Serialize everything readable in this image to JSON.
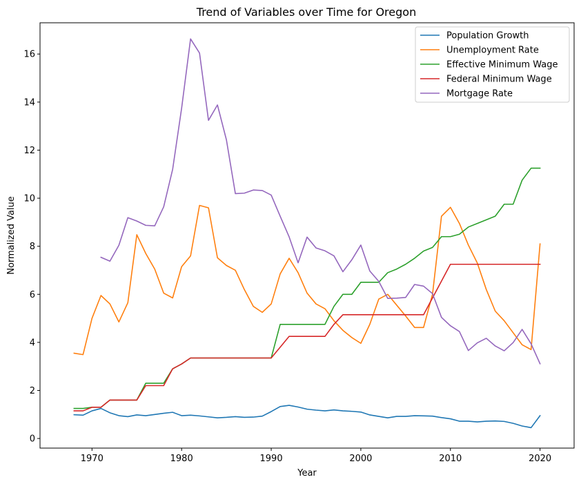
{
  "chart_data": {
    "type": "line",
    "title": "Trend of Variables over Time for Oregon",
    "xlabel": "Year",
    "ylabel": "Normalized Value",
    "xlim": [
      1964.2,
      2023.8
    ],
    "ylim": [
      -0.4,
      17.3
    ],
    "xticks": [
      1970,
      1980,
      1990,
      2000,
      2010,
      2020
    ],
    "yticks": [
      0,
      2,
      4,
      6,
      8,
      10,
      12,
      14,
      16
    ],
    "grid": false,
    "legend_position": "top-right",
    "series": [
      {
        "name": "Population Growth",
        "color": "#1f77b4",
        "x": [
          1968,
          1969,
          1970,
          1971,
          1972,
          1973,
          1974,
          1975,
          1976,
          1977,
          1978,
          1979,
          1980,
          1981,
          1982,
          1983,
          1984,
          1985,
          1986,
          1987,
          1988,
          1989,
          1990,
          1991,
          1992,
          1993,
          1994,
          1995,
          1996,
          1997,
          1998,
          1999,
          2000,
          2001,
          2002,
          2003,
          2004,
          2005,
          2006,
          2007,
          2008,
          2009,
          2010,
          2011,
          2012,
          2013,
          2014,
          2015,
          2016,
          2017,
          2018,
          2019,
          2020
        ],
        "values": [
          0.99,
          0.97,
          1.15,
          1.25,
          1.07,
          0.95,
          0.91,
          0.98,
          0.95,
          1.0,
          1.05,
          1.09,
          0.95,
          0.97,
          0.94,
          0.9,
          0.86,
          0.88,
          0.91,
          0.88,
          0.89,
          0.93,
          1.12,
          1.33,
          1.38,
          1.31,
          1.22,
          1.18,
          1.15,
          1.19,
          1.15,
          1.13,
          1.1,
          0.98,
          0.92,
          0.86,
          0.92,
          0.92,
          0.95,
          0.94,
          0.93,
          0.87,
          0.82,
          0.72,
          0.72,
          0.69,
          0.72,
          0.73,
          0.71,
          0.63,
          0.52,
          0.45,
          0.95
        ]
      },
      {
        "name": "Unemployment Rate",
        "color": "#ff7f0e",
        "x": [
          1968,
          1969,
          1970,
          1971,
          1972,
          1973,
          1974,
          1975,
          1976,
          1977,
          1978,
          1979,
          1980,
          1981,
          1982,
          1983,
          1984,
          1985,
          1986,
          1987,
          1988,
          1989,
          1990,
          1991,
          1992,
          1993,
          1994,
          1995,
          1996,
          1997,
          1998,
          1999,
          2000,
          2001,
          2002,
          2003,
          2004,
          2005,
          2006,
          2007,
          2008,
          2009,
          2010,
          2011,
          2012,
          2013,
          2014,
          2015,
          2016,
          2017,
          2018,
          2019,
          2020
        ],
        "values": [
          3.55,
          3.49,
          5.0,
          5.95,
          5.6,
          4.85,
          5.65,
          8.48,
          7.7,
          7.05,
          6.05,
          5.85,
          7.15,
          7.6,
          9.7,
          9.6,
          7.52,
          7.2,
          7.0,
          6.2,
          5.5,
          5.25,
          5.6,
          6.85,
          7.5,
          6.9,
          6.05,
          5.6,
          5.4,
          4.9,
          4.5,
          4.2,
          3.96,
          4.75,
          5.8,
          6.0,
          5.55,
          5.1,
          4.62,
          4.62,
          6.0,
          9.25,
          9.62,
          8.95,
          8.05,
          7.3,
          6.2,
          5.3,
          4.9,
          4.4,
          3.9,
          3.7,
          8.1
        ]
      },
      {
        "name": "Effective Minimum Wage",
        "color": "#2ca02c",
        "x": [
          1968,
          1969,
          1970,
          1971,
          1972,
          1973,
          1974,
          1975,
          1976,
          1977,
          1978,
          1979,
          1980,
          1981,
          1982,
          1983,
          1984,
          1985,
          1986,
          1987,
          1988,
          1989,
          1990,
          1991,
          1992,
          1993,
          1994,
          1995,
          1996,
          1997,
          1998,
          1999,
          2000,
          2001,
          2002,
          2003,
          2004,
          2005,
          2006,
          2007,
          2008,
          2009,
          2010,
          2011,
          2012,
          2013,
          2014,
          2015,
          2016,
          2017,
          2018,
          2019,
          2020
        ],
        "values": [
          1.25,
          1.25,
          1.3,
          1.3,
          1.6,
          1.6,
          1.6,
          1.6,
          2.3,
          2.3,
          2.3,
          2.9,
          3.1,
          3.35,
          3.35,
          3.35,
          3.35,
          3.35,
          3.35,
          3.35,
          3.35,
          3.35,
          3.35,
          4.75,
          4.75,
          4.75,
          4.75,
          4.75,
          4.75,
          5.5,
          6.0,
          6.0,
          6.5,
          6.5,
          6.5,
          6.9,
          7.05,
          7.25,
          7.5,
          7.8,
          7.95,
          8.4,
          8.4,
          8.5,
          8.8,
          8.95,
          9.1,
          9.25,
          9.75,
          9.75,
          10.75,
          11.25,
          11.25
        ]
      },
      {
        "name": "Federal Minimum Wage",
        "color": "#d62728",
        "x": [
          1968,
          1969,
          1970,
          1971,
          1972,
          1973,
          1974,
          1975,
          1976,
          1977,
          1978,
          1979,
          1980,
          1981,
          1982,
          1983,
          1984,
          1985,
          1986,
          1987,
          1988,
          1989,
          1990,
          1991,
          1992,
          1993,
          1994,
          1995,
          1996,
          1997,
          1998,
          1999,
          2000,
          2001,
          2002,
          2003,
          2004,
          2005,
          2006,
          2007,
          2008,
          2009,
          2010,
          2011,
          2012,
          2013,
          2014,
          2015,
          2016,
          2017,
          2018,
          2019,
          2020
        ],
        "values": [
          1.15,
          1.15,
          1.3,
          1.3,
          1.6,
          1.6,
          1.6,
          1.6,
          2.2,
          2.2,
          2.2,
          2.9,
          3.1,
          3.35,
          3.35,
          3.35,
          3.35,
          3.35,
          3.35,
          3.35,
          3.35,
          3.35,
          3.35,
          3.8,
          4.25,
          4.25,
          4.25,
          4.25,
          4.25,
          4.75,
          5.15,
          5.15,
          5.15,
          5.15,
          5.15,
          5.15,
          5.15,
          5.15,
          5.15,
          5.15,
          5.85,
          6.55,
          7.25,
          7.25,
          7.25,
          7.25,
          7.25,
          7.25,
          7.25,
          7.25,
          7.25,
          7.25,
          7.25
        ]
      },
      {
        "name": "Mortgage Rate",
        "color": "#9467bd",
        "x": [
          1971,
          1972,
          1973,
          1974,
          1975,
          1976,
          1977,
          1978,
          1979,
          1980,
          1981,
          1982,
          1983,
          1984,
          1985,
          1986,
          1987,
          1988,
          1989,
          1990,
          1991,
          1992,
          1993,
          1994,
          1995,
          1996,
          1997,
          1998,
          1999,
          2000,
          2001,
          2002,
          2003,
          2004,
          2005,
          2006,
          2007,
          2008,
          2009,
          2010,
          2011,
          2012,
          2013,
          2014,
          2015,
          2016,
          2017,
          2018,
          2019,
          2020
        ],
        "values": [
          7.54,
          7.38,
          8.04,
          9.19,
          9.05,
          8.87,
          8.85,
          9.64,
          11.2,
          13.74,
          16.63,
          16.04,
          13.24,
          13.88,
          12.43,
          10.19,
          10.21,
          10.34,
          10.32,
          10.13,
          9.25,
          8.39,
          7.31,
          8.38,
          7.93,
          7.81,
          7.6,
          6.94,
          7.44,
          8.05,
          6.97,
          6.54,
          5.83,
          5.84,
          5.87,
          6.41,
          6.34,
          6.03,
          5.04,
          4.69,
          4.45,
          3.66,
          3.98,
          4.17,
          3.85,
          3.65,
          3.99,
          4.54,
          3.94,
          3.11
        ]
      }
    ]
  }
}
